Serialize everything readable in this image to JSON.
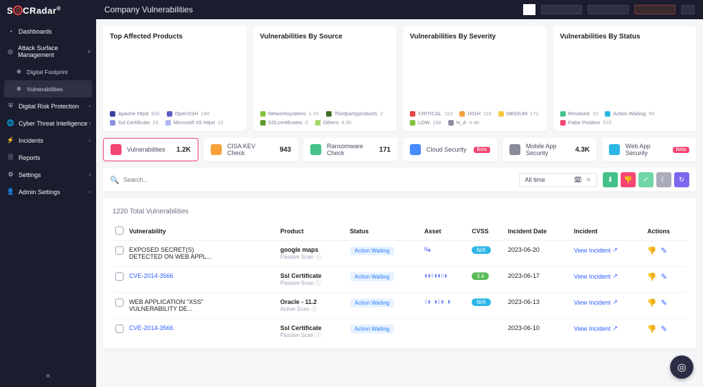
{
  "brand": "SOCRadar",
  "page_title": "Company Vulnerabilities",
  "sidebar": {
    "items": [
      {
        "label": "Dashboards",
        "icon": "dashboard"
      },
      {
        "label": "Attack Surface Management",
        "icon": "target",
        "expanded": true,
        "children": [
          {
            "label": "Digital Footprint"
          },
          {
            "label": "Vulnerabilities",
            "active": true
          }
        ]
      },
      {
        "label": "Digital Risk Protection",
        "icon": "shield"
      },
      {
        "label": "Cyber Threat Intelligence",
        "icon": "globe"
      },
      {
        "label": "Incidents",
        "icon": "chart"
      },
      {
        "label": "Reports",
        "icon": "doc"
      },
      {
        "label": "Settings",
        "icon": "gear"
      },
      {
        "label": "Admin Settings",
        "icon": "user"
      }
    ]
  },
  "charts": {
    "donut_size": 92,
    "donut_thickness": 20,
    "items": [
      {
        "title": "Top Affected Products",
        "series": [
          {
            "label": "Apache httpd",
            "count": "832",
            "color": "#3b3f9e"
          },
          {
            "label": "OpenSSH",
            "count": "148",
            "color": "#5a5fc8"
          },
          {
            "label": "Ssl Certificate",
            "count": "23",
            "color": "#8a8fe0"
          },
          {
            "label": "Microsoft IIS httpd",
            "count": "22",
            "color": "#b1b5f0"
          }
        ]
      },
      {
        "title": "Vulnerabilities By Source",
        "series": [
          {
            "label": "Networksystems",
            "count": "1.1K",
            "color": "#84c340"
          },
          {
            "label": "Thirdpartyproducts",
            "count": "2",
            "color": "#3f6e20"
          },
          {
            "label": "SSLcertificates",
            "count": "0",
            "color": "#5f9a2e"
          },
          {
            "label": "Others",
            "count": "4.5K",
            "color": "#a7d96a"
          }
        ]
      },
      {
        "title": "Vulnerabilities By Severity",
        "series": [
          {
            "label": "CRITICAL",
            "count": "110",
            "color": "#e84545"
          },
          {
            "label": "HIGH",
            "count": "116",
            "color": "#f2a23c"
          },
          {
            "label": "MEDIUM",
            "count": "172",
            "color": "#f6c945"
          },
          {
            "label": "LOW",
            "count": "198",
            "color": "#84c340"
          },
          {
            "label": "N_A",
            "count": "4.4K",
            "color": "#8a8c9c"
          }
        ]
      },
      {
        "title": "Vulnerabilities By Status",
        "series": [
          {
            "label": "Resolved",
            "count": "10",
            "color": "#45c28a"
          },
          {
            "label": "Action Waiting",
            "count": "5K",
            "color": "#2cb7e6"
          },
          {
            "label": "False Positive",
            "count": "570",
            "color": "#f44672"
          }
        ]
      }
    ]
  },
  "stats": [
    {
      "label": "Vulnerabilities",
      "value": "1.2K",
      "color": "#f44672",
      "active": true
    },
    {
      "label": "CISA KEV Check",
      "value": "943",
      "color": "#f6a23c"
    },
    {
      "label": "Ransomware Check",
      "value": "171",
      "color": "#45c28a"
    },
    {
      "label": "Cloud Security",
      "value": "",
      "color": "#4a8cff",
      "beta": true
    },
    {
      "label": "Mobile App Security",
      "value": "4.3K",
      "color": "#8a8c9c"
    },
    {
      "label": "Web App Security",
      "value": "",
      "color": "#2cb7e6",
      "beta": true
    }
  ],
  "beta_label": "Beta",
  "toolbar": {
    "search_placeholder": "Search...",
    "time_label": "All time",
    "buttons": [
      {
        "name": "download",
        "color": "#45c28a",
        "glyph": "⬇"
      },
      {
        "name": "dislike",
        "color": "#f44672",
        "glyph": "👎"
      },
      {
        "name": "approve",
        "color": "#6fd6a8",
        "glyph": "✓"
      },
      {
        "name": "snooze",
        "color": "#a9abb8",
        "glyph": "☾"
      },
      {
        "name": "refresh",
        "color": "#7b68ee",
        "glyph": "↻"
      }
    ]
  },
  "table": {
    "summary": "1220 Total Vulnerabilities",
    "columns": [
      "Vulnerability",
      "Product",
      "Status",
      "Asset",
      "CVSS",
      "Incident Date",
      "Incident",
      "Actions"
    ],
    "status_label": "Action Waiting",
    "view_label": "View Incident",
    "rows": [
      {
        "vuln": "EXPOSED SECRET(S) DETECTED ON WEB APPL...",
        "link": false,
        "product": "google maps",
        "scan": "Passive Scan",
        "asset": "N▲",
        "cvss": "N/A",
        "cvss_color": "#2cb7e6",
        "date": "2023-06-20"
      },
      {
        "vuln": "CVE-2014-3566",
        "link": true,
        "product": "Ssl Certificate",
        "scan": "Passive Scan",
        "asset": "▮▮▯▮▮▯▮",
        "cvss": "3.4",
        "cvss_color": "#57b957",
        "date": "2023-06-17"
      },
      {
        "vuln": "WEB APPLICATION \"XSS\" VULNERABILITY DE...",
        "link": false,
        "product": "Oracle - 11.2",
        "scan": "Active Scan",
        "asset": "▯▮ ▮▯▮ ▮",
        "cvss": "N/A",
        "cvss_color": "#2cb7e6",
        "date": "2023-06-13"
      },
      {
        "vuln": "CVE-2014-3566",
        "link": true,
        "product": "Ssl Certificate",
        "scan": "Passive Scan",
        "asset": "",
        "cvss": "",
        "cvss_color": "#57b957",
        "date": "2023-06-10"
      }
    ]
  }
}
